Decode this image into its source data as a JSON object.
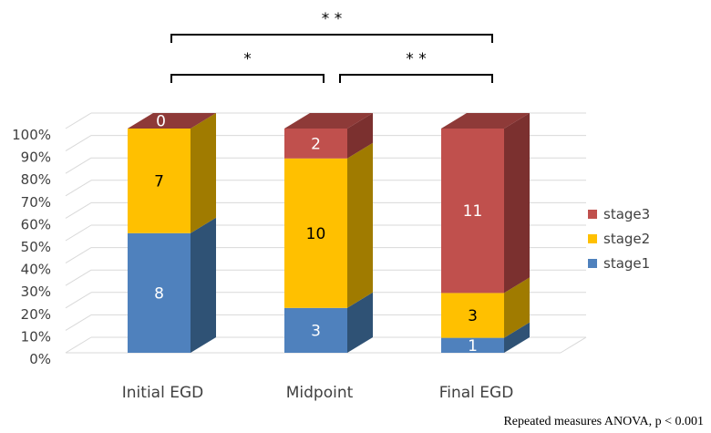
{
  "chart_data": {
    "type": "bar",
    "stacked": true,
    "percent_stacked": true,
    "three_d": true,
    "categories": [
      "Initial EGD",
      "Midpoint",
      "Final EGD"
    ],
    "series": [
      {
        "name": "stage1",
        "values": [
          8,
          3,
          1
        ],
        "color": "#4f81bd",
        "side_color": "#2f5275",
        "top_color": "#39618f",
        "label_color": "#ffffff"
      },
      {
        "name": "stage2",
        "values": [
          7,
          10,
          3
        ],
        "color": "#ffc000",
        "side_color": "#a07b00",
        "top_color": "#c99700",
        "label_color": "#000000"
      },
      {
        "name": "stage3",
        "values": [
          0,
          2,
          11
        ],
        "color": "#c0504d",
        "side_color": "#7b302f",
        "top_color": "#8e3a38",
        "label_color": "#ffffff"
      }
    ],
    "y_ticks": [
      "0%",
      "10%",
      "20%",
      "30%",
      "40%",
      "50%",
      "60%",
      "70%",
      "80%",
      "90%",
      "100%"
    ],
    "ylim": [
      0,
      100
    ],
    "grid": true,
    "legend_position": "right",
    "significance": [
      {
        "from": 0,
        "to": 2,
        "label": "* *"
      },
      {
        "from": 0,
        "to": 1,
        "label": "*"
      },
      {
        "from": 1,
        "to": 2,
        "label": "* *"
      }
    ],
    "note": "Repeated measures ANOVA, p < 0.001"
  }
}
